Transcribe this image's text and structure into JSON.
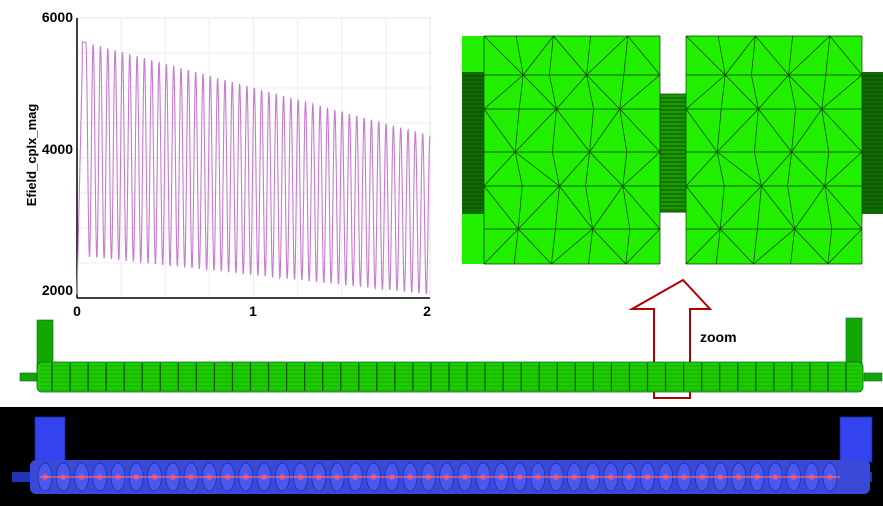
{
  "annotation": {
    "zoom_label": "zoom"
  },
  "chart_data": {
    "type": "line",
    "title": "",
    "xlabel": "",
    "ylabel": "Efield_cplx_mag",
    "xlim": [
      0,
      2
    ],
    "ylim": [
      1950,
      6000
    ],
    "xticks": [
      "0",
      "1",
      "2"
    ],
    "yticks": [
      "2000",
      "4000",
      "6000"
    ],
    "grid": true,
    "series_color": "#c77ad1",
    "oscillation": {
      "x_start": 0.05,
      "x_end": 2.0,
      "cycles": 47,
      "peak_start": 5650,
      "peak_end": 4300,
      "trough_start": 2550,
      "trough_end": 2000
    }
  },
  "colors": {
    "mesh_green": "#22ee00",
    "mesh_blue": "#3344ee",
    "arrow": "#b00000",
    "line": "#c77ad1"
  }
}
